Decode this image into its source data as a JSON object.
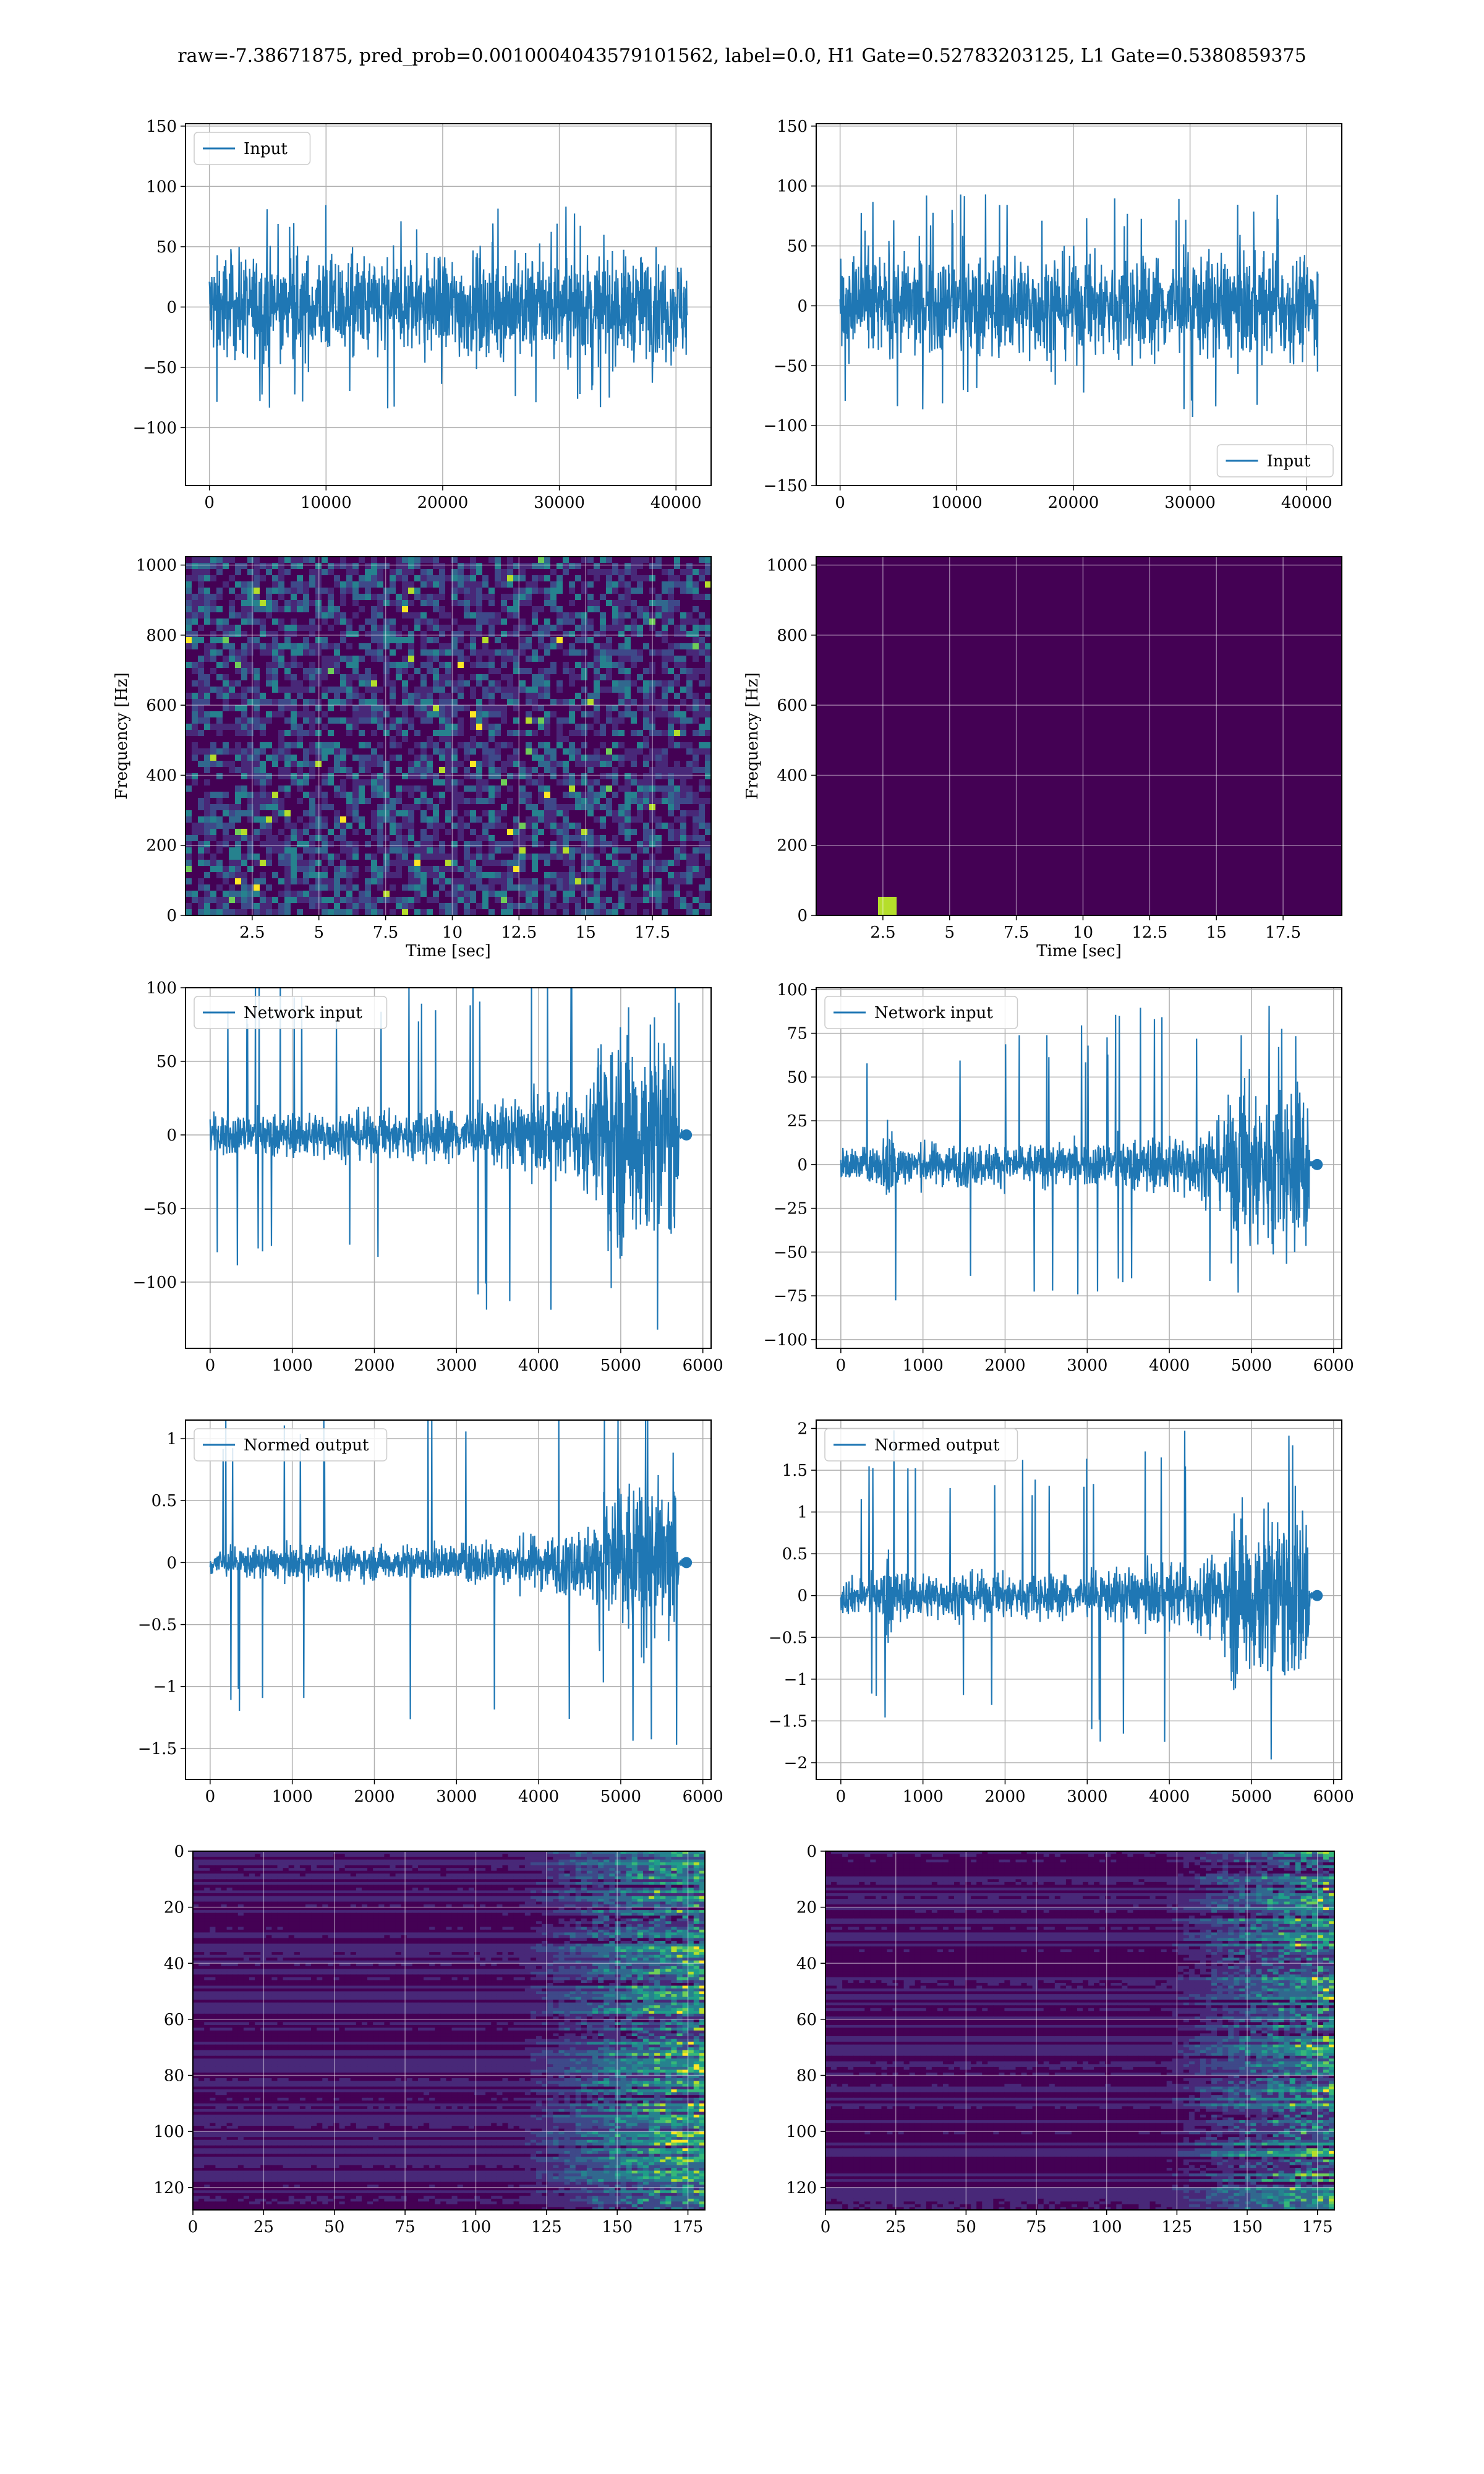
{
  "figure": {
    "title": "raw=-7.38671875, pred_prob=0.0010004043579101562, label=0.0, H1 Gate=0.52783203125, L1 Gate=0.5380859375"
  },
  "colors": {
    "line": "#1f77b4",
    "grid": "#b0b0b0",
    "viridis": [
      "#440154",
      "#482878",
      "#3e4989",
      "#31688e",
      "#26828e",
      "#1f9e89",
      "#35b779",
      "#6ece58",
      "#b5de2b",
      "#fde725"
    ]
  },
  "chart_data": [
    {
      "id": "r1c1",
      "type": "line",
      "legend": "Input",
      "legend_position": "upper-left",
      "x_range": [
        0,
        40960
      ],
      "xlim": [
        -2048,
        43008
      ],
      "ylim": [
        -148,
        152
      ],
      "xticks": [
        0,
        10000,
        20000,
        30000,
        40000
      ],
      "yticks": [
        -100,
        -50,
        0,
        50,
        100,
        150
      ],
      "envelope": {
        "spread": 38,
        "outlier": 110,
        "trend": [
          [
            0,
            1.0
          ],
          [
            1,
            1.0
          ]
        ]
      },
      "end_marker": false,
      "grid": true
    },
    {
      "id": "r1c2",
      "type": "line",
      "legend": "Input",
      "legend_position": "lower-right",
      "x_range": [
        0,
        40960
      ],
      "xlim": [
        -2048,
        43008
      ],
      "ylim": [
        -150,
        152
      ],
      "xticks": [
        0,
        10000,
        20000,
        30000,
        40000
      ],
      "yticks": [
        -150,
        -100,
        -50,
        0,
        50,
        100,
        150
      ],
      "envelope": {
        "spread": 38,
        "outlier": 120,
        "trend": [
          [
            0,
            1.0
          ],
          [
            1,
            1.0
          ]
        ]
      },
      "end_marker": false,
      "grid": true
    },
    {
      "id": "r2c1",
      "type": "heatmap",
      "ylabel": "Frequency [Hz]",
      "xlabel": "Time [sec]",
      "xlim": [
        0,
        19.7
      ],
      "ylim": [
        0,
        1024
      ],
      "xticks": [
        2.5,
        5.0,
        7.5,
        10.0,
        12.5,
        15.0,
        17.5
      ],
      "yticks": [
        0,
        200,
        400,
        600,
        800,
        1000
      ],
      "intensity": "bright",
      "dark_band_hz": 500,
      "hot_spot": null,
      "grid": true
    },
    {
      "id": "r2c2",
      "type": "heatmap",
      "ylabel": "Frequency [Hz]",
      "xlabel": "Time [sec]",
      "xlim": [
        0,
        19.7
      ],
      "ylim": [
        0,
        1024
      ],
      "xticks": [
        2.5,
        5.0,
        7.5,
        10.0,
        12.5,
        15.0,
        17.5
      ],
      "yticks": [
        0,
        200,
        400,
        600,
        800,
        1000
      ],
      "intensity": "dark",
      "dark_band_hz": null,
      "hot_spot": [
        2.6,
        25
      ],
      "grid": true
    },
    {
      "id": "r3c1",
      "type": "line",
      "legend": "Network input",
      "legend_position": "upper-left",
      "x_range": [
        0,
        5800
      ],
      "xlim": [
        -300,
        6100
      ],
      "ylim": [
        -145,
        100
      ],
      "xticks": [
        0,
        1000,
        2000,
        3000,
        4000,
        5000,
        6000
      ],
      "yticks": [
        -100,
        -50,
        0,
        50,
        100
      ],
      "envelope": {
        "spread": 14,
        "outlier": 135,
        "trend": [
          [
            0,
            0.9
          ],
          [
            0.5,
            1.1
          ],
          [
            0.75,
            1.8
          ],
          [
            0.81,
            2.4
          ],
          [
            0.82,
            5.2
          ],
          [
            0.98,
            4.8
          ],
          [
            0.985,
            0.2
          ],
          [
            1,
            0.2
          ]
        ]
      },
      "end_marker": true,
      "grid": true
    },
    {
      "id": "r3c2",
      "type": "line",
      "legend": "Network input",
      "legend_position": "upper-left",
      "x_range": [
        0,
        5800
      ],
      "xlim": [
        -300,
        6100
      ],
      "ylim": [
        -105,
        101
      ],
      "xticks": [
        0,
        1000,
        2000,
        3000,
        4000,
        5000,
        6000
      ],
      "yticks": [
        -100,
        -75,
        -50,
        -25,
        0,
        25,
        50,
        75,
        100
      ],
      "envelope": {
        "spread": 9,
        "outlier": 95,
        "trend": [
          [
            0,
            1.0
          ],
          [
            0.08,
            1.0
          ],
          [
            0.1,
            2.6
          ],
          [
            0.13,
            1.2
          ],
          [
            0.5,
            1.2
          ],
          [
            0.75,
            1.8
          ],
          [
            0.81,
            2.6
          ],
          [
            0.82,
            4.8
          ],
          [
            0.98,
            4.8
          ],
          [
            0.985,
            0.2
          ],
          [
            1,
            0.2
          ]
        ]
      },
      "end_marker": true,
      "grid": true
    },
    {
      "id": "r4c1",
      "type": "line",
      "legend": "Normed output",
      "legend_position": "upper-left",
      "x_range": [
        0,
        5800
      ],
      "xlim": [
        -300,
        6100
      ],
      "ylim": [
        -1.75,
        1.15
      ],
      "xticks": [
        0,
        1000,
        2000,
        3000,
        4000,
        5000,
        6000
      ],
      "yticks": [
        -1.5,
        -1.0,
        -0.5,
        0.0,
        0.5,
        1.0
      ],
      "envelope": {
        "spread": 0.12,
        "outlier": 1.6,
        "trend": [
          [
            0,
            0.9
          ],
          [
            0.5,
            1.1
          ],
          [
            0.75,
            1.8
          ],
          [
            0.81,
            2.4
          ],
          [
            0.82,
            5.2
          ],
          [
            0.98,
            4.8
          ],
          [
            0.985,
            0.2
          ],
          [
            1,
            0.2
          ]
        ]
      },
      "end_marker": true,
      "grid": true
    },
    {
      "id": "r4c2",
      "type": "line",
      "legend": "Normed output",
      "legend_position": "upper-left",
      "x_range": [
        0,
        5800
      ],
      "xlim": [
        -300,
        6100
      ],
      "ylim": [
        -2.2,
        2.1
      ],
      "xticks": [
        0,
        1000,
        2000,
        3000,
        4000,
        5000,
        6000
      ],
      "yticks": [
        -2.0,
        -1.5,
        -1.0,
        -0.5,
        0.0,
        0.5,
        1.0,
        1.5,
        2.0
      ],
      "envelope": {
        "spread": 0.2,
        "outlier": 2.0,
        "trend": [
          [
            0,
            1.0
          ],
          [
            0.08,
            1.0
          ],
          [
            0.1,
            2.6
          ],
          [
            0.13,
            1.2
          ],
          [
            0.5,
            1.2
          ],
          [
            0.75,
            1.8
          ],
          [
            0.81,
            2.6
          ],
          [
            0.82,
            4.8
          ],
          [
            0.98,
            4.8
          ],
          [
            0.985,
            0.2
          ],
          [
            1,
            0.2
          ]
        ]
      },
      "end_marker": true,
      "grid": true
    },
    {
      "id": "r5c1",
      "type": "heatmap",
      "ylabel": "",
      "xlabel": "",
      "xlim": [
        0,
        181
      ],
      "ylim": [
        128,
        0
      ],
      "rows": 128,
      "xticks": [
        0,
        25,
        50,
        75,
        100,
        125,
        150,
        175
      ],
      "yticks": [
        0,
        20,
        40,
        60,
        80,
        100,
        120
      ],
      "activity_onset": 115,
      "grid": true
    },
    {
      "id": "r5c2",
      "type": "heatmap",
      "ylabel": "",
      "xlabel": "",
      "xlim": [
        0,
        181
      ],
      "ylim": [
        128,
        0
      ],
      "rows": 128,
      "xticks": [
        0,
        25,
        50,
        75,
        100,
        125,
        150,
        175
      ],
      "yticks": [
        0,
        20,
        40,
        60,
        80,
        100,
        120
      ],
      "activity_onset": 120,
      "grid": true
    }
  ]
}
